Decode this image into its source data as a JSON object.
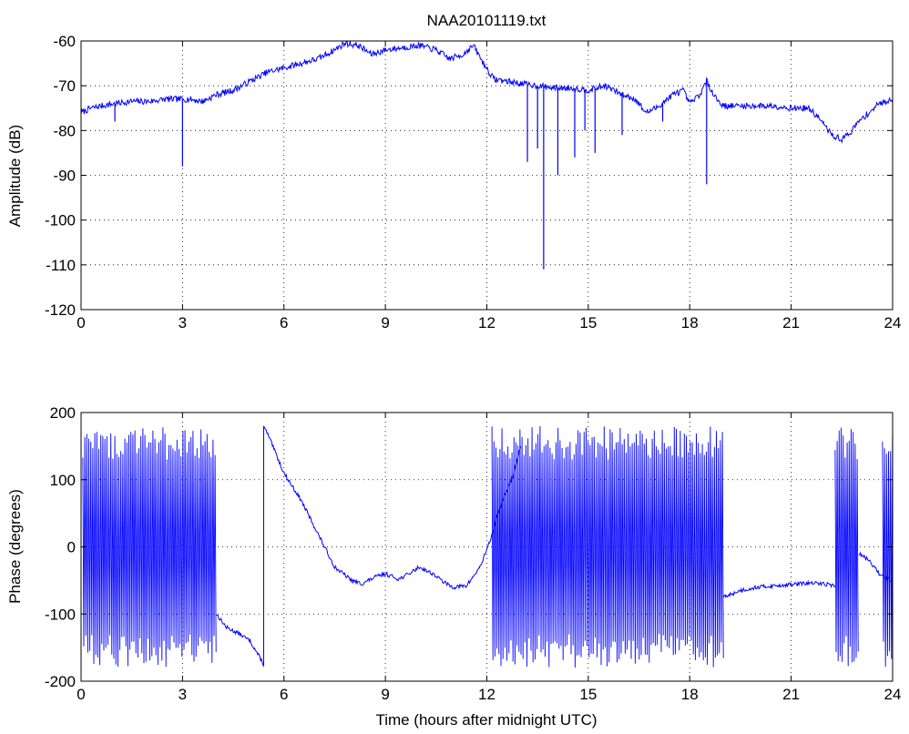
{
  "chart_data": [
    {
      "type": "line",
      "title": "NAA20101119.txt",
      "xlabel": "",
      "ylabel": "Amplitude (dB)",
      "xlim": [
        0,
        24
      ],
      "ylim": [
        -120,
        -60
      ],
      "xticks": [
        0,
        3,
        6,
        9,
        12,
        15,
        18,
        21,
        24
      ],
      "yticks": [
        -120,
        -110,
        -100,
        -90,
        -80,
        -70,
        -60
      ],
      "grid": true,
      "line_color": "#0000ff",
      "series": [
        {
          "x": [
            0,
            0.3,
            0.6,
            1.0,
            1.5,
            2.0,
            2.5,
            2.9,
            3.2,
            3.6,
            4.0,
            4.5,
            5.0,
            5.5,
            6.0,
            6.5,
            7.0,
            7.5,
            7.8,
            8.2,
            8.6,
            9.0,
            9.5,
            10.0,
            10.5,
            10.9,
            11.3,
            11.6,
            11.9,
            12.2,
            12.6,
            13.0,
            13.5,
            14.0,
            14.5,
            15.0,
            15.5,
            16.0,
            16.4,
            16.7,
            17.0,
            17.5,
            17.8,
            18.0,
            18.3,
            18.5,
            18.8,
            19.0,
            19.5,
            20.0,
            20.5,
            21.0,
            21.5,
            21.8,
            22.0,
            22.2,
            22.5,
            22.8,
            23.0,
            23.3,
            23.6,
            24.0
          ],
          "y": [
            -76,
            -75,
            -74.5,
            -74,
            -73.5,
            -73.5,
            -73,
            -73,
            -73,
            -73.5,
            -72,
            -71,
            -69,
            -67,
            -66,
            -65,
            -64,
            -62,
            -60.5,
            -61,
            -63,
            -62,
            -61.5,
            -61,
            -62,
            -64,
            -63,
            -61,
            -65,
            -68.5,
            -69,
            -69.5,
            -70,
            -70.5,
            -70.5,
            -71,
            -70,
            -72,
            -73,
            -76,
            -75,
            -72,
            -71,
            -74,
            -72,
            -69,
            -73,
            -74.5,
            -74.5,
            -74.5,
            -74.5,
            -75,
            -75,
            -77,
            -79,
            -81,
            -82,
            -80,
            -78,
            -76,
            -74,
            -73
          ]
        }
      ],
      "spikes": [
        {
          "x": 1.0,
          "y": -78
        },
        {
          "x": 3.0,
          "y": -88
        },
        {
          "x": 13.2,
          "y": -87
        },
        {
          "x": 13.5,
          "y": -84
        },
        {
          "x": 13.68,
          "y": -111
        },
        {
          "x": 14.1,
          "y": -90
        },
        {
          "x": 14.6,
          "y": -86
        },
        {
          "x": 14.9,
          "y": -80
        },
        {
          "x": 15.2,
          "y": -85
        },
        {
          "x": 16.0,
          "y": -81
        },
        {
          "x": 17.2,
          "y": -78
        },
        {
          "x": 18.5,
          "y": -92
        }
      ]
    },
    {
      "type": "line",
      "title": "",
      "xlabel": "Time (hours after midnight UTC)",
      "ylabel": "Phase (degrees)",
      "xlim": [
        0,
        24
      ],
      "ylim": [
        -200,
        200
      ],
      "xticks": [
        0,
        3,
        6,
        9,
        12,
        15,
        18,
        21,
        24
      ],
      "yticks": [
        -200,
        -100,
        0,
        100,
        200
      ],
      "grid": true,
      "line_color": "#0000ff",
      "wrapping_segments": [
        {
          "x_start": 0.05,
          "x_end": 4.0
        },
        {
          "x_start": 12.15,
          "x_end": 19.0
        },
        {
          "x_start": 22.3,
          "x_end": 23.0
        },
        {
          "x_start": 23.7,
          "x_end": 24.0
        }
      ],
      "series": [
        {
          "x": [
            4.0,
            4.3,
            4.7,
            5.0,
            5.4,
            5.4,
            5.5,
            6.0,
            6.5,
            7.0,
            7.5,
            8.0,
            8.3,
            8.7,
            9.0,
            9.4,
            9.7,
            10.0,
            10.4,
            10.8,
            11.0,
            11.4,
            11.8,
            12.1,
            12.4,
            12.8,
            13.0
          ],
          "y": [
            -100,
            -120,
            -130,
            -140,
            -175,
            178,
            170,
            110,
            70,
            20,
            -30,
            -50,
            -55,
            -45,
            -40,
            -48,
            -40,
            -30,
            -40,
            -55,
            -60,
            -58,
            -30,
            10,
            60,
            110,
            150
          ]
        },
        {
          "x": [
            19.0,
            19.5,
            20.0,
            20.5,
            21.0,
            21.5,
            22.0,
            22.3
          ],
          "y": [
            -75,
            -65,
            -60,
            -58,
            -56,
            -54,
            -55,
            -58
          ]
        },
        {
          "x": [
            23.0,
            23.3,
            23.6,
            24.0
          ],
          "y": [
            -10,
            -20,
            -40,
            -50
          ]
        }
      ]
    }
  ]
}
